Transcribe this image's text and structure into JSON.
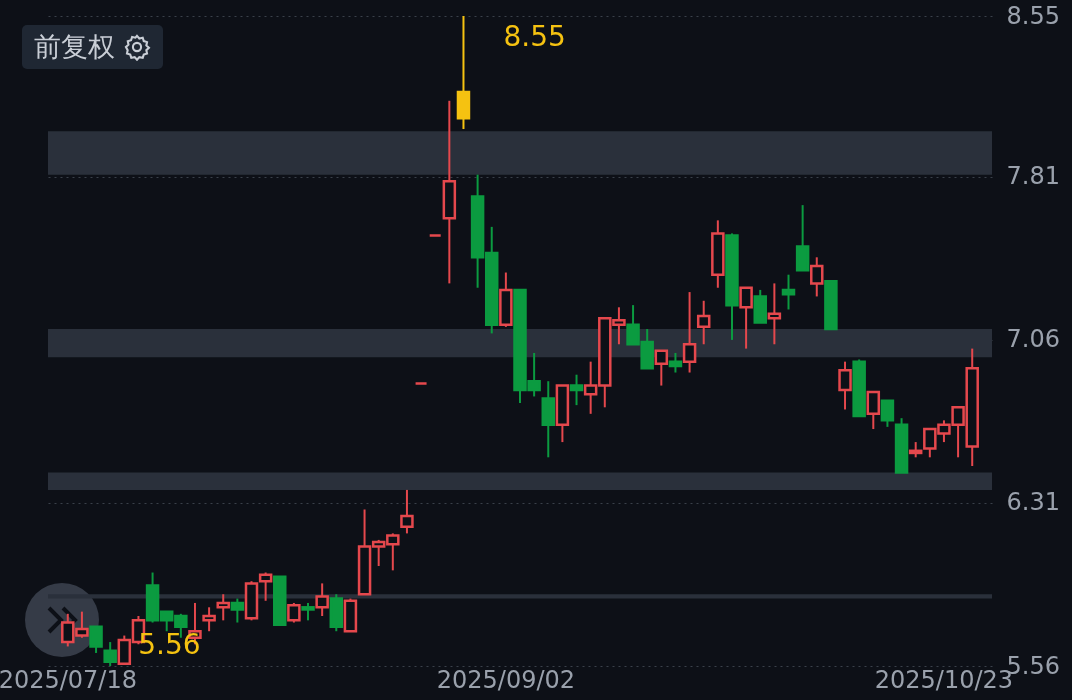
{
  "chart_data": {
    "type": "candlestick",
    "categories": [
      "2025/07/18",
      null,
      null,
      null,
      null,
      null,
      null,
      null,
      null,
      null,
      null,
      null,
      null,
      null,
      null,
      null,
      null,
      null,
      null,
      null,
      null,
      null,
      null,
      null,
      null,
      null,
      null,
      null,
      null,
      null,
      null,
      "2025/09/02",
      null,
      null,
      null,
      null,
      null,
      null,
      null,
      null,
      null,
      null,
      null,
      null,
      null,
      null,
      null,
      null,
      null,
      null,
      null,
      null,
      null,
      null,
      null,
      null,
      null,
      null,
      null,
      null,
      null,
      null,
      "2025/10/23",
      null,
      null
    ],
    "ohlc": [
      [
        5.67,
        5.8,
        5.65,
        5.76
      ],
      [
        5.7,
        5.81,
        5.69,
        5.73
      ],
      [
        5.74,
        5.74,
        5.62,
        5.65
      ],
      [
        5.63,
        5.67,
        5.56,
        5.58
      ],
      [
        5.57,
        5.7,
        5.57,
        5.68
      ],
      [
        5.67,
        5.79,
        5.66,
        5.77
      ],
      [
        5.93,
        5.99,
        5.76,
        5.77
      ],
      [
        5.81,
        5.81,
        5.72,
        5.77
      ],
      [
        5.79,
        5.8,
        5.69,
        5.74
      ],
      [
        5.69,
        5.85,
        5.66,
        5.72
      ],
      [
        5.77,
        5.83,
        5.72,
        5.79
      ],
      [
        5.83,
        5.89,
        5.77,
        5.85
      ],
      [
        5.85,
        5.87,
        5.76,
        5.82
      ],
      [
        5.78,
        5.95,
        5.77,
        5.94
      ],
      [
        5.95,
        5.99,
        5.86,
        5.98
      ],
      [
        5.97,
        5.97,
        5.75,
        5.75
      ],
      [
        5.77,
        5.85,
        5.76,
        5.84
      ],
      [
        5.83,
        5.85,
        5.77,
        5.82
      ],
      [
        5.83,
        5.94,
        5.79,
        5.88
      ],
      [
        5.87,
        5.89,
        5.72,
        5.74
      ],
      [
        5.72,
        5.87,
        5.72,
        5.86
      ],
      [
        5.89,
        6.28,
        5.89,
        6.11
      ],
      [
        6.11,
        6.14,
        6.02,
        6.13
      ],
      [
        6.12,
        6.17,
        6.0,
        6.16
      ],
      [
        6.2,
        6.37,
        6.17,
        6.25
      ],
      [
        6.86,
        6.86,
        6.86,
        6.86
      ],
      [
        7.54,
        7.54,
        7.54,
        7.54
      ],
      [
        7.62,
        8.16,
        7.32,
        7.79
      ],
      [
        8.2,
        8.55,
        8.03,
        8.08
      ],
      [
        7.72,
        7.82,
        7.3,
        7.44
      ],
      [
        7.46,
        7.58,
        7.09,
        7.13
      ],
      [
        7.13,
        7.37,
        7.12,
        7.29
      ],
      [
        7.29,
        7.29,
        6.77,
        6.83
      ],
      [
        6.87,
        7.0,
        6.8,
        6.83
      ],
      [
        6.79,
        6.87,
        6.52,
        6.67
      ],
      [
        6.67,
        6.85,
        6.59,
        6.85
      ],
      [
        6.85,
        6.9,
        6.76,
        6.83
      ],
      [
        6.81,
        6.96,
        6.72,
        6.85
      ],
      [
        6.85,
        7.16,
        6.75,
        7.16
      ],
      [
        7.13,
        7.21,
        7.04,
        7.15
      ],
      [
        7.13,
        7.22,
        7.04,
        7.04
      ],
      [
        7.05,
        7.11,
        6.93,
        6.93
      ],
      [
        6.95,
        7.01,
        6.85,
        7.01
      ],
      [
        6.96,
        7.0,
        6.91,
        6.94
      ],
      [
        6.96,
        7.28,
        6.91,
        7.04
      ],
      [
        7.12,
        7.24,
        7.04,
        7.17
      ],
      [
        7.36,
        7.61,
        7.3,
        7.55
      ],
      [
        7.54,
        7.55,
        7.06,
        7.22
      ],
      [
        7.21,
        7.3,
        7.02,
        7.3
      ],
      [
        7.26,
        7.29,
        7.14,
        7.14
      ],
      [
        7.16,
        7.32,
        7.04,
        7.18
      ],
      [
        7.29,
        7.36,
        7.2,
        7.27
      ],
      [
        7.49,
        7.68,
        7.38,
        7.38
      ],
      [
        7.32,
        7.44,
        7.26,
        7.4
      ],
      [
        7.33,
        7.33,
        7.11,
        7.11
      ],
      [
        6.83,
        6.96,
        6.74,
        6.92
      ],
      [
        6.96,
        6.97,
        6.71,
        6.71
      ],
      [
        6.72,
        6.82,
        6.65,
        6.82
      ],
      [
        6.78,
        6.78,
        6.66,
        6.69
      ],
      [
        6.67,
        6.7,
        6.45,
        6.45
      ],
      [
        6.54,
        6.59,
        6.52,
        6.55
      ],
      [
        6.56,
        6.65,
        6.52,
        6.65
      ],
      [
        6.63,
        6.69,
        6.59,
        6.67
      ],
      [
        6.67,
        6.75,
        6.52,
        6.75
      ],
      [
        6.57,
        7.02,
        6.48,
        6.93
      ]
    ],
    "colors": [
      "#e5484d",
      "#e5484d",
      "#0b9b40",
      "#0b9b40",
      "#e5484d",
      "#e5484d",
      "#0b9b40",
      "#0b9b40",
      "#0b9b40",
      "#e5484d",
      "#e5484d",
      "#e5484d",
      "#0b9b40",
      "#e5484d",
      "#e5484d",
      "#0b9b40",
      "#e5484d",
      "#0b9b40",
      "#e5484d",
      "#0b9b40",
      "#e5484d",
      "#e5484d",
      "#e5484d",
      "#e5484d",
      "#e5484d",
      "#e5484d",
      "#e5484d",
      "#e5484d",
      "#f5c211",
      "#0b9b40",
      "#0b9b40",
      "#e5484d",
      "#0b9b40",
      "#0b9b40",
      "#0b9b40",
      "#e5484d",
      "#0b9b40",
      "#e5484d",
      "#e5484d",
      "#e5484d",
      "#0b9b40",
      "#0b9b40",
      "#e5484d",
      "#0b9b40",
      "#e5484d",
      "#e5484d",
      "#e5484d",
      "#0b9b40",
      "#e5484d",
      "#0b9b40",
      "#e5484d",
      "#0b9b40",
      "#0b9b40",
      "#e5484d",
      "#0b9b40",
      "#e5484d",
      "#0b9b40",
      "#e5484d",
      "#0b9b40",
      "#0b9b40",
      "#e5484d",
      "#e5484d",
      "#e5484d",
      "#e5484d",
      "#e5484d"
    ],
    "ylim": [
      5.56,
      8.55
    ],
    "yticks": [
      5.56,
      6.31,
      7.06,
      7.81,
      8.55
    ],
    "grid": "y",
    "bands": [
      {
        "axis": "y",
        "from": 7.82,
        "to": 8.02,
        "color": "#2a303b"
      },
      {
        "axis": "y",
        "from": 6.98,
        "to": 7.11,
        "color": "#2a303b"
      },
      {
        "axis": "y",
        "from": 6.37,
        "to": 6.45,
        "color": "#2a303b"
      },
      {
        "axis": "y",
        "from": 5.87,
        "to": 5.89,
        "color": "#2a303b"
      }
    ],
    "annotations": [
      "前复权",
      "8.55",
      "5.56"
    ]
  }
}
